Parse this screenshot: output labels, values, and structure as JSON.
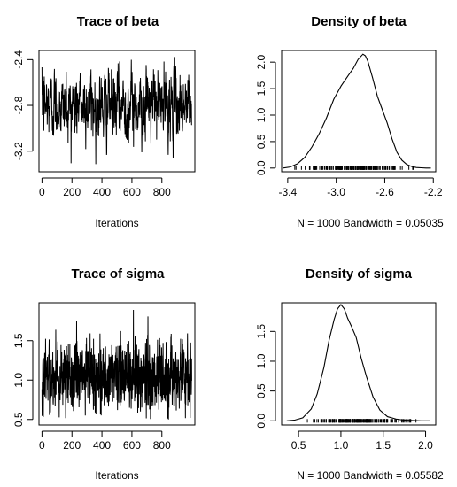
{
  "chart_data": [
    {
      "id": "trace_beta",
      "type": "line",
      "title": "Trace of beta",
      "xlabel": "Iterations",
      "ylabel": "",
      "xlim": [
        -20,
        1020
      ],
      "ylim": [
        -3.38,
        -2.32
      ],
      "x_ticks": [
        0,
        200,
        400,
        600,
        800
      ],
      "y_ticks": [
        -3.2,
        -2.8,
        -2.4
      ],
      "series_summary": {
        "n": 1000,
        "center": -2.8,
        "min": -3.35,
        "max": -2.35
      }
    },
    {
      "id": "density_beta",
      "type": "line",
      "title": "Density of beta",
      "xlabel": "N = 1000   Bandwidth = 0.05035",
      "ylabel": "",
      "xlim": [
        -3.45,
        -2.18
      ],
      "ylim": [
        -0.07,
        2.22
      ],
      "x_ticks": [
        -3.4,
        -3.0,
        -2.6,
        -2.2
      ],
      "y_ticks": [
        0.0,
        0.5,
        1.0,
        1.5,
        2.0
      ],
      "x": [
        -3.44,
        -3.38,
        -3.32,
        -3.26,
        -3.2,
        -3.14,
        -3.08,
        -3.02,
        -2.96,
        -2.9,
        -2.86,
        -2.82,
        -2.78,
        -2.76,
        -2.74,
        -2.7,
        -2.66,
        -2.62,
        -2.58,
        -2.54,
        -2.5,
        -2.46,
        -2.42,
        -2.38,
        -2.34,
        -2.3,
        -2.26,
        -2.22
      ],
      "values": [
        0.0,
        0.02,
        0.08,
        0.2,
        0.4,
        0.65,
        0.95,
        1.3,
        1.55,
        1.75,
        1.88,
        2.05,
        2.15,
        2.12,
        2.02,
        1.7,
        1.35,
        1.1,
        0.85,
        0.55,
        0.3,
        0.15,
        0.07,
        0.03,
        0.01,
        0.005,
        0.0,
        0.0
      ],
      "rug_range": [
        -3.36,
        -2.36
      ]
    },
    {
      "id": "trace_sigma",
      "type": "line",
      "title": "Trace of sigma",
      "xlabel": "Iterations",
      "ylabel": "",
      "xlim": [
        -20,
        1020
      ],
      "ylim": [
        0.43,
        1.98
      ],
      "x_ticks": [
        0,
        200,
        400,
        600,
        800
      ],
      "y_ticks": [
        0.5,
        1.0,
        1.5
      ],
      "series_summary": {
        "n": 1000,
        "center": 1.05,
        "min": 0.5,
        "max": 1.95
      }
    },
    {
      "id": "density_sigma",
      "type": "line",
      "title": "Density of sigma",
      "xlabel": "N = 1000   Bandwidth = 0.05582",
      "ylabel": "",
      "xlim": [
        0.3,
        2.12
      ],
      "ylim": [
        -0.07,
        1.98
      ],
      "x_ticks": [
        0.5,
        1.0,
        1.5,
        2.0
      ],
      "y_ticks": [
        0.0,
        0.5,
        1.0,
        1.5
      ],
      "x": [
        0.36,
        0.45,
        0.55,
        0.65,
        0.72,
        0.8,
        0.86,
        0.92,
        0.96,
        1.0,
        1.04,
        1.08,
        1.12,
        1.18,
        1.24,
        1.3,
        1.38,
        1.46,
        1.55,
        1.65,
        1.75,
        1.85,
        1.95,
        2.05
      ],
      "values": [
        0.0,
        0.01,
        0.05,
        0.2,
        0.45,
        0.9,
        1.35,
        1.7,
        1.88,
        1.95,
        1.88,
        1.72,
        1.6,
        1.4,
        1.05,
        0.75,
        0.4,
        0.18,
        0.07,
        0.03,
        0.01,
        0.005,
        0.0,
        0.0
      ],
      "rug_range": [
        0.55,
        1.9
      ]
    }
  ]
}
